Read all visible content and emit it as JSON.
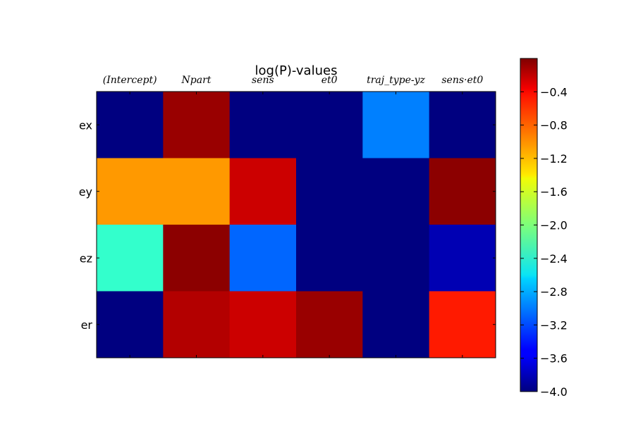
{
  "chart_data": {
    "type": "heatmap",
    "title": "log(P)-values",
    "columns": [
      "(Intercept)",
      "Npart",
      "sens",
      "et0",
      "traj_type-yz",
      "sens·et0"
    ],
    "rows": [
      "ex",
      "ey",
      "ez",
      "er"
    ],
    "values": [
      [
        -4.0,
        -0.1,
        -4.0,
        -4.0,
        -3.0,
        -4.0
      ],
      [
        -1.1,
        -1.1,
        -0.3,
        -4.0,
        -4.0,
        -0.05
      ],
      [
        -2.3,
        -0.05,
        -3.1,
        -4.0,
        -4.0,
        -3.8
      ],
      [
        -4.0,
        -0.2,
        -0.3,
        -0.1,
        -4.0,
        -0.6
      ]
    ],
    "colorbar": {
      "min": -4.0,
      "max": 0.0,
      "ticks": [
        -4.0,
        -3.6,
        -3.2,
        -2.8,
        -2.4,
        -2.0,
        -1.6,
        -1.2,
        -0.8,
        -0.4
      ],
      "tick_labels": [
        "−4.0",
        "−3.6",
        "−3.2",
        "−2.8",
        "−2.4",
        "−2.0",
        "−1.6",
        "−1.2",
        "−0.8",
        "−0.4"
      ],
      "colormap": "jet"
    }
  }
}
